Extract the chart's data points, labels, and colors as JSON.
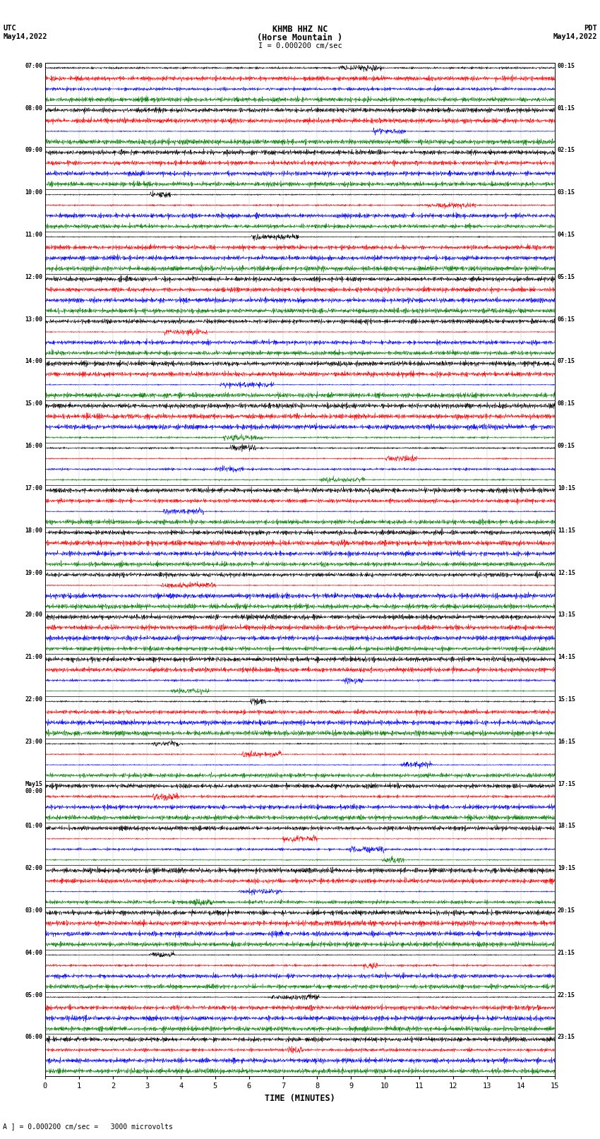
{
  "title_line1": "KHMB HHZ NC",
  "title_line2": "(Horse Mountain )",
  "title_line3": "I = 0.000200 cm/sec",
  "label_left_top1": "UTC",
  "label_left_top2": "May14,2022",
  "label_right_top1": "PDT",
  "label_right_top2": "May14,2022",
  "xlabel": "TIME (MINUTES)",
  "footer": "A ] = 0.000200 cm/sec =   3000 microvolts",
  "utc_hour_labels": [
    "07:00",
    "08:00",
    "09:00",
    "10:00",
    "11:00",
    "12:00",
    "13:00",
    "14:00",
    "15:00",
    "16:00",
    "17:00",
    "18:00",
    "19:00",
    "20:00",
    "21:00",
    "22:00",
    "23:00",
    "May15\n00:00",
    "01:00",
    "02:00",
    "03:00",
    "04:00",
    "05:00",
    "06:00"
  ],
  "pdt_hour_labels": [
    "00:15",
    "01:15",
    "02:15",
    "03:15",
    "04:15",
    "05:15",
    "06:15",
    "07:15",
    "08:15",
    "09:15",
    "10:15",
    "11:15",
    "12:15",
    "13:15",
    "14:15",
    "15:15",
    "16:15",
    "17:15",
    "18:15",
    "19:15",
    "20:15",
    "21:15",
    "22:15",
    "23:15"
  ],
  "colors": [
    "black",
    "red",
    "blue",
    "green"
  ],
  "n_hours": 24,
  "traces_per_hour": 4,
  "n_points": 1800,
  "bg_color": "white",
  "trace_amplitude": 0.38,
  "xlim": [
    0,
    15
  ],
  "seed": 42,
  "fig_width": 8.5,
  "fig_height": 16.13,
  "dpi": 100
}
